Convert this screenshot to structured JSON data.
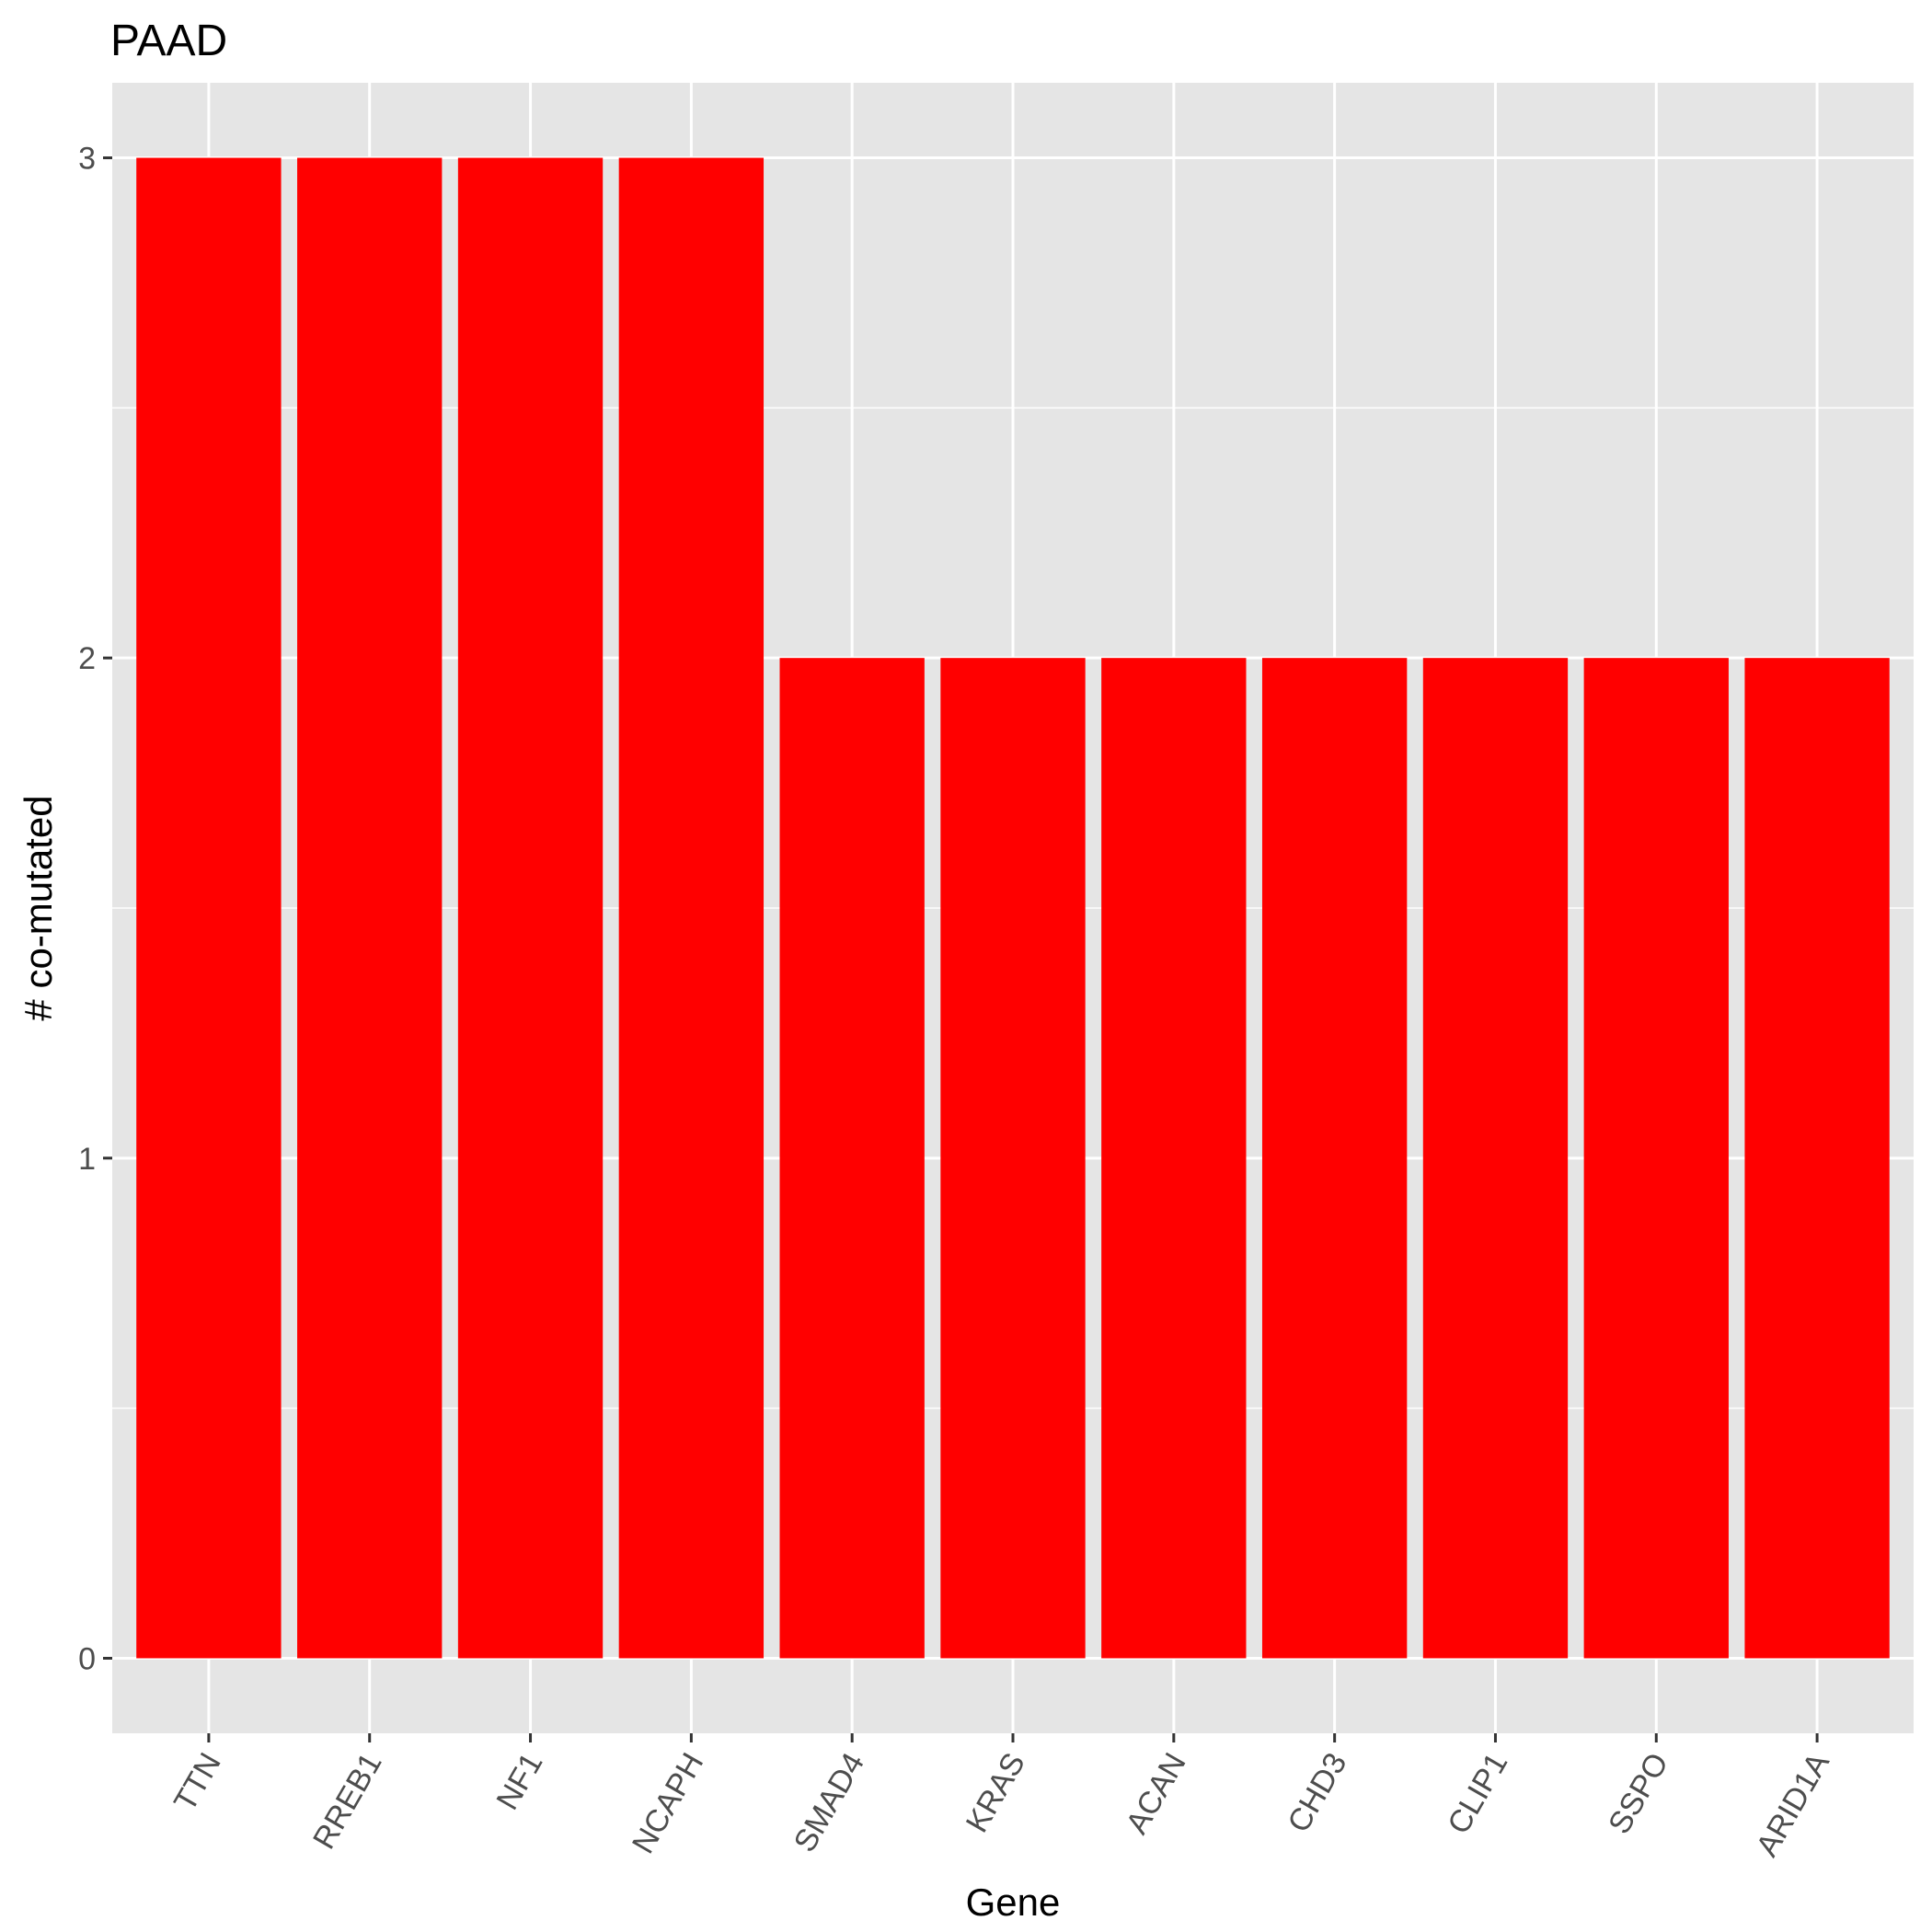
{
  "chart_data": {
    "type": "bar",
    "title": "PAAD",
    "xlabel": "Gene",
    "ylabel": "# co-mutated",
    "categories": [
      "TTN",
      "RREB1",
      "NF1",
      "NCAPH",
      "SMAD4",
      "KRAS",
      "ACAN",
      "CHD3",
      "CLIP1",
      "SSPO",
      "ARID1A"
    ],
    "values": [
      3,
      3,
      3,
      3,
      2,
      2,
      2,
      2,
      2,
      2,
      2
    ],
    "yticks": [
      "0",
      "1",
      "2",
      "3"
    ],
    "ylim": [
      -0.15,
      3.15
    ],
    "grid": true,
    "legend": "none",
    "colors": {
      "bar": "#ff0000",
      "panel_background": "#e5e5e5",
      "grid": "#ffffff"
    }
  }
}
